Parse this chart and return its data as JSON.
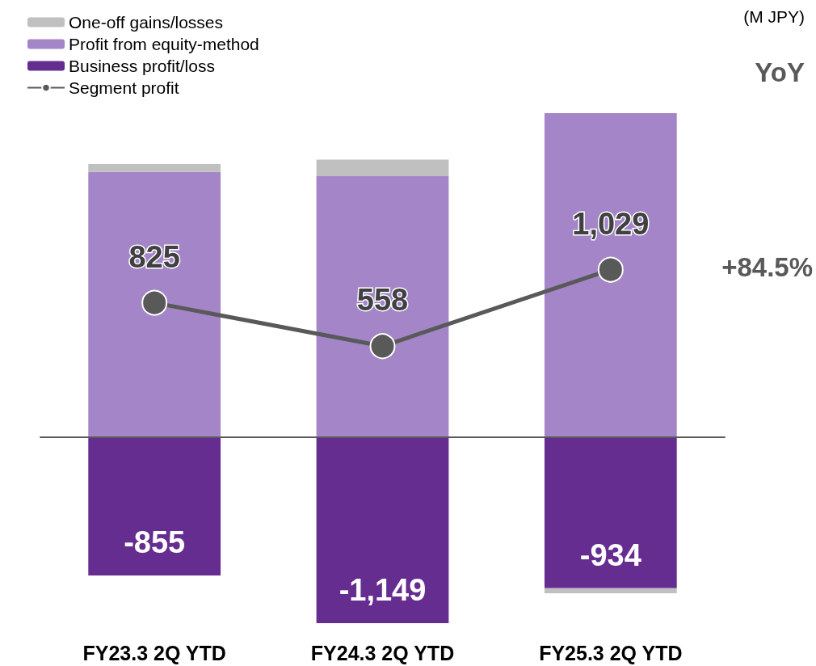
{
  "chart_data": {
    "type": "bar",
    "stacked": true,
    "legend": "top left",
    "marker": "circle",
    "categories": [
      "FY23.3 2Q YTD",
      "FY24.3 2Q YTD",
      "FY25.3 2Q YTD"
    ],
    "series": [
      {
        "name": "Business profit/loss",
        "color": "#662d91",
        "values": [
          -855,
          -1149,
          -934
        ],
        "value_labels": [
          "-855",
          "-1,149",
          "-934"
        ]
      },
      {
        "name": "Profit from equity-method",
        "color": "#a385c8",
        "values": [
          1632,
          1605,
          1994
        ]
      },
      {
        "name": "One-off gains/losses",
        "color": "#c0c0c0",
        "values": [
          48,
          102,
          -31
        ]
      },
      {
        "name": "Segment profit",
        "type": "line",
        "color": "#595959",
        "values": [
          825,
          558,
          1029
        ],
        "value_labels": [
          "825",
          "558",
          "1,029"
        ]
      }
    ],
    "annotations": [
      "(M JPY)",
      "YoY",
      "+84.5%"
    ]
  }
}
